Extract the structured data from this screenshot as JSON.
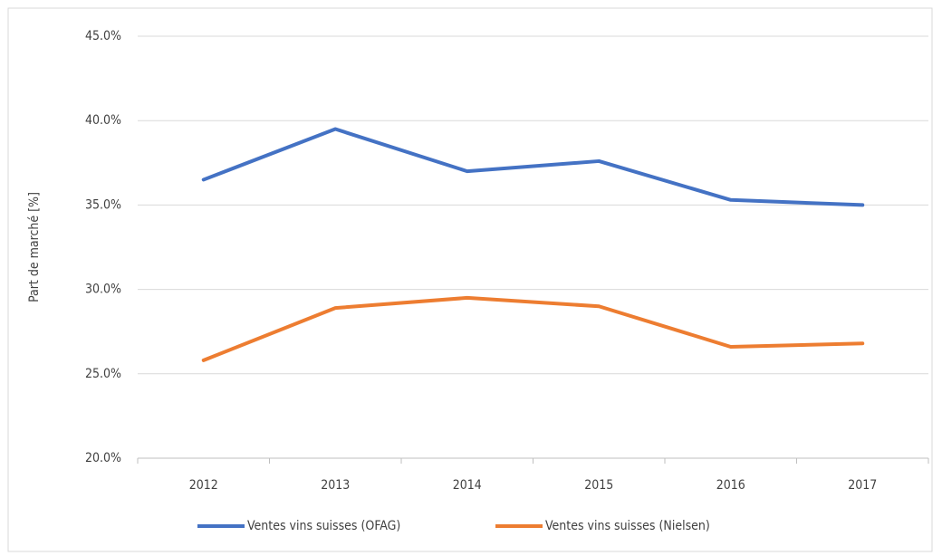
{
  "chart_data": {
    "type": "line",
    "y_label": "Part de marché [%]",
    "categories": [
      "2012",
      "2013",
      "2014",
      "2015",
      "2016",
      "2017"
    ],
    "series": [
      {
        "name": "Ventes vins suisses (OFAG)",
        "color": "#4472c4",
        "values": [
          36.5,
          39.5,
          37.0,
          37.6,
          35.3,
          35.0
        ]
      },
      {
        "name": "Ventes vins suisses (Nielsen)",
        "color": "#ed7d31",
        "values": [
          25.8,
          28.9,
          29.5,
          29.0,
          26.6,
          26.8
        ]
      }
    ],
    "ylim": [
      20,
      45
    ],
    "yticks": [
      {
        "value": 20,
        "label": "20.0%"
      },
      {
        "value": 25,
        "label": "25.0%"
      },
      {
        "value": 30,
        "label": "30.0%"
      },
      {
        "value": 35,
        "label": "35.0%"
      },
      {
        "value": 40,
        "label": "40.0%"
      },
      {
        "value": 45,
        "label": "45.0%"
      }
    ],
    "grid": true,
    "legend": "bottom"
  }
}
